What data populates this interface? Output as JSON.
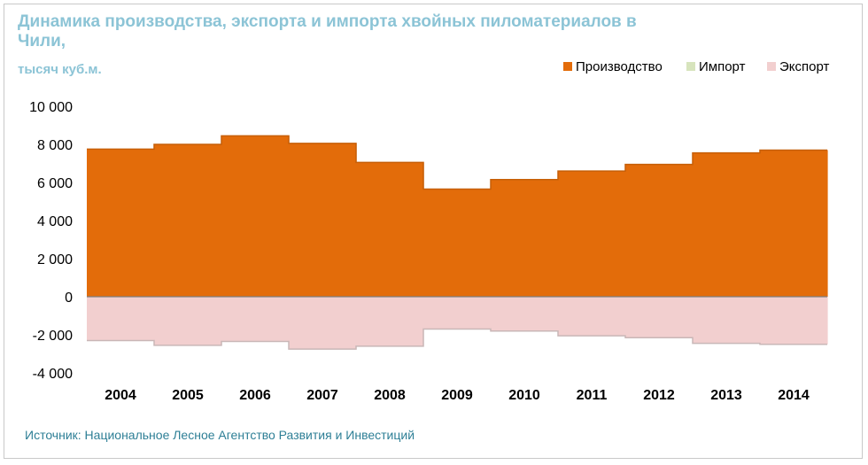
{
  "chart_data": {
    "type": "area",
    "title": "Динамика производства, экспорта и импорта хвойных пиломатериалов в Чили,",
    "subtitle": "тысяч куб.м.",
    "categories": [
      "2004",
      "2005",
      "2006",
      "2007",
      "2008",
      "2009",
      "2010",
      "2011",
      "2012",
      "2013",
      "2014"
    ],
    "series": [
      {
        "name": "Производство",
        "color": "#e36c0a",
        "values": [
          7750,
          8000,
          8450,
          8050,
          7050,
          5650,
          6150,
          6600,
          6950,
          7550,
          7700
        ]
      },
      {
        "name": "Импорт",
        "color": "#d7e4bd",
        "values": [
          0,
          0,
          0,
          0,
          0,
          0,
          0,
          0,
          0,
          0,
          0
        ]
      },
      {
        "name": "Экспорт",
        "color": "#f2cfcf",
        "values": [
          -2300,
          -2550,
          -2350,
          -2750,
          -2600,
          -1700,
          -1800,
          -2050,
          -2150,
          -2450,
          -2500
        ]
      }
    ],
    "ylim": [
      -4000,
      10000
    ],
    "yticks": [
      {
        "value": 10000,
        "label": "10 000"
      },
      {
        "value": 8000,
        "label": "8 000"
      },
      {
        "value": 6000,
        "label": "6 000"
      },
      {
        "value": 4000,
        "label": "4 000"
      },
      {
        "value": 2000,
        "label": "2 000"
      },
      {
        "value": 0,
        "label": "0"
      },
      {
        "value": -2000,
        "label": "-2 000"
      },
      {
        "value": -4000,
        "label": "-4 000"
      }
    ],
    "xlabel": "",
    "ylabel": "",
    "legend_position": "top-right",
    "grid": false
  },
  "source": "Источник: Национальное Лесное Агентство Развития и Инвестиций"
}
